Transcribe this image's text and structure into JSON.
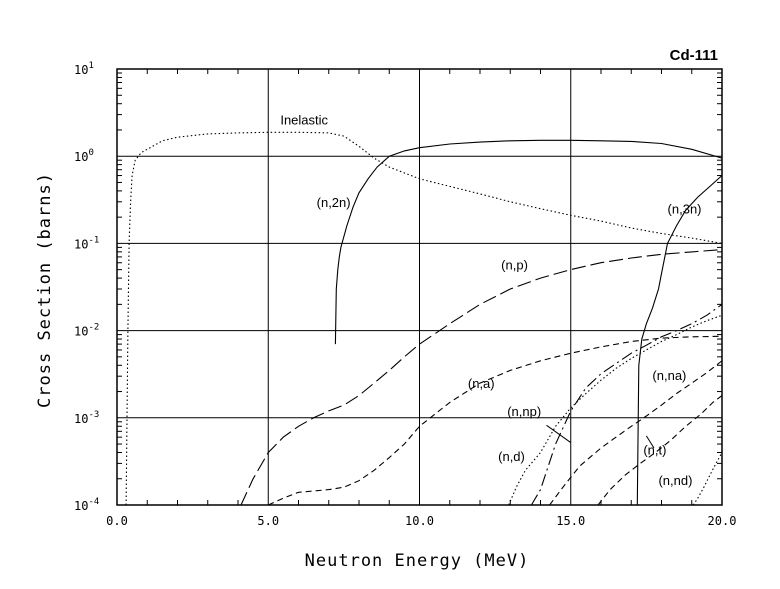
{
  "chart_data": {
    "type": "line",
    "title": "Cd-111",
    "xlabel": "Neutron Energy (MeV)",
    "ylabel": "Cross Section (barns)",
    "xlim": [
      0,
      20
    ],
    "ylim": [
      0.0001,
      10
    ],
    "yscale": "log",
    "grid": true,
    "x_ticks": [
      "0.0",
      "5.0",
      "10.0",
      "15.0",
      "20.0"
    ],
    "y_ticks": [
      {
        "base": "10",
        "exp": "1"
      },
      {
        "base": "10",
        "exp": "0"
      },
      {
        "base": "10",
        "exp": "-1"
      },
      {
        "base": "10",
        "exp": "-2"
      },
      {
        "base": "10",
        "exp": "-3"
      },
      {
        "base": "10",
        "exp": "-4"
      }
    ],
    "series": [
      {
        "name": "Inelastic",
        "label": "Inelastic",
        "style": "dotted",
        "x": [
          0.3,
          0.33,
          0.36,
          0.4,
          0.45,
          0.5,
          0.6,
          0.8,
          1.0,
          1.5,
          2.0,
          3.0,
          4.0,
          5.0,
          6.0,
          7.0,
          7.5,
          8.0,
          8.5,
          9.0,
          10.0,
          11.0,
          12.0,
          13.0,
          14.0,
          15.0,
          16.0,
          17.0,
          18.0,
          19.0,
          20.0
        ],
        "y": [
          0.0001,
          0.001,
          0.01,
          0.1,
          0.3,
          0.6,
          0.9,
          1.1,
          1.2,
          1.5,
          1.65,
          1.8,
          1.85,
          1.88,
          1.88,
          1.85,
          1.7,
          1.3,
          0.95,
          0.75,
          0.55,
          0.45,
          0.37,
          0.3,
          0.25,
          0.21,
          0.18,
          0.15,
          0.13,
          0.115,
          0.1
        ],
        "label_at": [
          5.4,
          2.3
        ]
      },
      {
        "name": "(n,2n)",
        "label": "(n,2n)",
        "style": "solid",
        "x": [
          7.22,
          7.25,
          7.3,
          7.35,
          7.4,
          7.5,
          7.6,
          7.8,
          8.0,
          8.3,
          8.6,
          9.0,
          9.5,
          10.0,
          11.0,
          12.0,
          13.0,
          14.0,
          15.0,
          16.0,
          17.0,
          18.0,
          19.0,
          20.0
        ],
        "y": [
          0.007,
          0.03,
          0.05,
          0.07,
          0.09,
          0.12,
          0.16,
          0.26,
          0.38,
          0.55,
          0.75,
          1.0,
          1.15,
          1.25,
          1.38,
          1.45,
          1.5,
          1.52,
          1.52,
          1.5,
          1.48,
          1.4,
          1.2,
          0.95
        ],
        "label_at": [
          6.6,
          0.26
        ]
      },
      {
        "name": "(n,3n)",
        "label": "(n,3n)",
        "style": "solid",
        "x": [
          17.2,
          17.25,
          17.35,
          17.5,
          17.7,
          17.9,
          18.0,
          18.2,
          18.5,
          18.8,
          19.2,
          19.6,
          20.0
        ],
        "y": [
          0.0001,
          0.004,
          0.008,
          0.012,
          0.018,
          0.03,
          0.045,
          0.1,
          0.16,
          0.24,
          0.34,
          0.45,
          0.6
        ],
        "label_at": [
          18.2,
          0.22
        ]
      },
      {
        "name": "(n,p)",
        "label": "(n,p)",
        "style": "longdash",
        "x": [
          4.1,
          4.5,
          5.0,
          5.5,
          6.0,
          6.5,
          7.0,
          7.5,
          8.0,
          8.5,
          9.0,
          9.5,
          10.0,
          11.0,
          12.0,
          13.0,
          14.0,
          15.0,
          16.0,
          17.0,
          18.0,
          19.0,
          20.0
        ],
        "y": [
          0.0001,
          0.0002,
          0.0004,
          0.0006,
          0.0008,
          0.001,
          0.0012,
          0.0014,
          0.0018,
          0.0025,
          0.0035,
          0.005,
          0.007,
          0.012,
          0.02,
          0.03,
          0.04,
          0.05,
          0.06,
          0.068,
          0.075,
          0.08,
          0.085
        ],
        "label_at": [
          12.7,
          0.05
        ]
      },
      {
        "name": "(n,a)",
        "label": "(n,a)",
        "style": "dashed",
        "x": [
          5.0,
          5.5,
          6.0,
          7.0,
          7.5,
          8.0,
          8.5,
          9.0,
          9.5,
          10.0,
          11.0,
          12.0,
          13.0,
          14.0,
          15.0,
          16.0,
          17.0,
          18.0,
          19.0,
          20.0
        ],
        "y": [
          0.0001,
          0.00012,
          0.00014,
          0.00015,
          0.00016,
          0.00019,
          0.00025,
          0.00035,
          0.0005,
          0.0008,
          0.0015,
          0.0025,
          0.0035,
          0.0045,
          0.0055,
          0.0065,
          0.0075,
          0.0082,
          0.0085,
          0.0086
        ],
        "label_at": [
          11.6,
          0.0022
        ]
      },
      {
        "name": "(n,np)",
        "label": "(n,np)",
        "style": "dashdot",
        "x": [
          13.7,
          14.0,
          14.5,
          15.0,
          15.5,
          16.0,
          16.5,
          17.0,
          17.5,
          18.0,
          18.5,
          19.0,
          19.5,
          20.0
        ],
        "y": [
          0.0001,
          0.00015,
          0.0005,
          0.0012,
          0.0022,
          0.0032,
          0.0042,
          0.0055,
          0.0068,
          0.0085,
          0.01,
          0.012,
          0.015,
          0.02
        ],
        "label_at": [
          12.9,
          0.00105
        ]
      },
      {
        "name": "(n,d)",
        "label": "(n,d)",
        "style": "dotted",
        "x": [
          12.95,
          13.2,
          13.5,
          14.0,
          14.5,
          15.0,
          15.5,
          16.0,
          16.5,
          17.0,
          17.5,
          18.0,
          18.5,
          19.0,
          19.5,
          20.0
        ],
        "y": [
          0.0001,
          0.00016,
          0.00025,
          0.0004,
          0.0008,
          0.0013,
          0.0019,
          0.0027,
          0.0037,
          0.0048,
          0.006,
          0.0075,
          0.009,
          0.011,
          0.013,
          0.015
        ],
        "label_at": [
          12.6,
          0.00032
        ]
      },
      {
        "name": "(n,na)",
        "label": "(n,na)",
        "style": "dashed",
        "x": [
          14.3,
          14.8,
          15.3,
          16.0,
          16.5,
          17.0,
          17.5,
          18.0,
          18.5,
          19.0,
          19.5,
          20.0
        ],
        "y": [
          0.0001,
          0.00017,
          0.00028,
          0.00045,
          0.0006,
          0.0008,
          0.00105,
          0.0014,
          0.0019,
          0.0025,
          0.0033,
          0.0045
        ],
        "label_at": [
          17.7,
          0.0027
        ]
      },
      {
        "name": "(n,t)",
        "label": "(n,t)",
        "style": "dashed",
        "x": [
          15.9,
          16.3,
          16.8,
          17.3,
          17.8,
          18.3,
          18.8,
          19.3,
          19.7,
          20.0
        ],
        "y": [
          0.0001,
          0.00015,
          0.00022,
          0.0003,
          0.0004,
          0.00055,
          0.0008,
          0.0011,
          0.0015,
          0.0018
        ],
        "label_at": [
          17.4,
          0.00038
        ]
      },
      {
        "name": "(n,nd)",
        "label": "(n,nd)",
        "style": "dotted",
        "x": [
          19.05,
          19.2,
          19.4,
          19.6,
          19.8,
          20.0
        ],
        "y": [
          0.0001,
          0.00012,
          0.00016,
          0.00022,
          0.0003,
          0.0004
        ],
        "label_at": [
          17.9,
          0.00017
        ]
      }
    ]
  }
}
